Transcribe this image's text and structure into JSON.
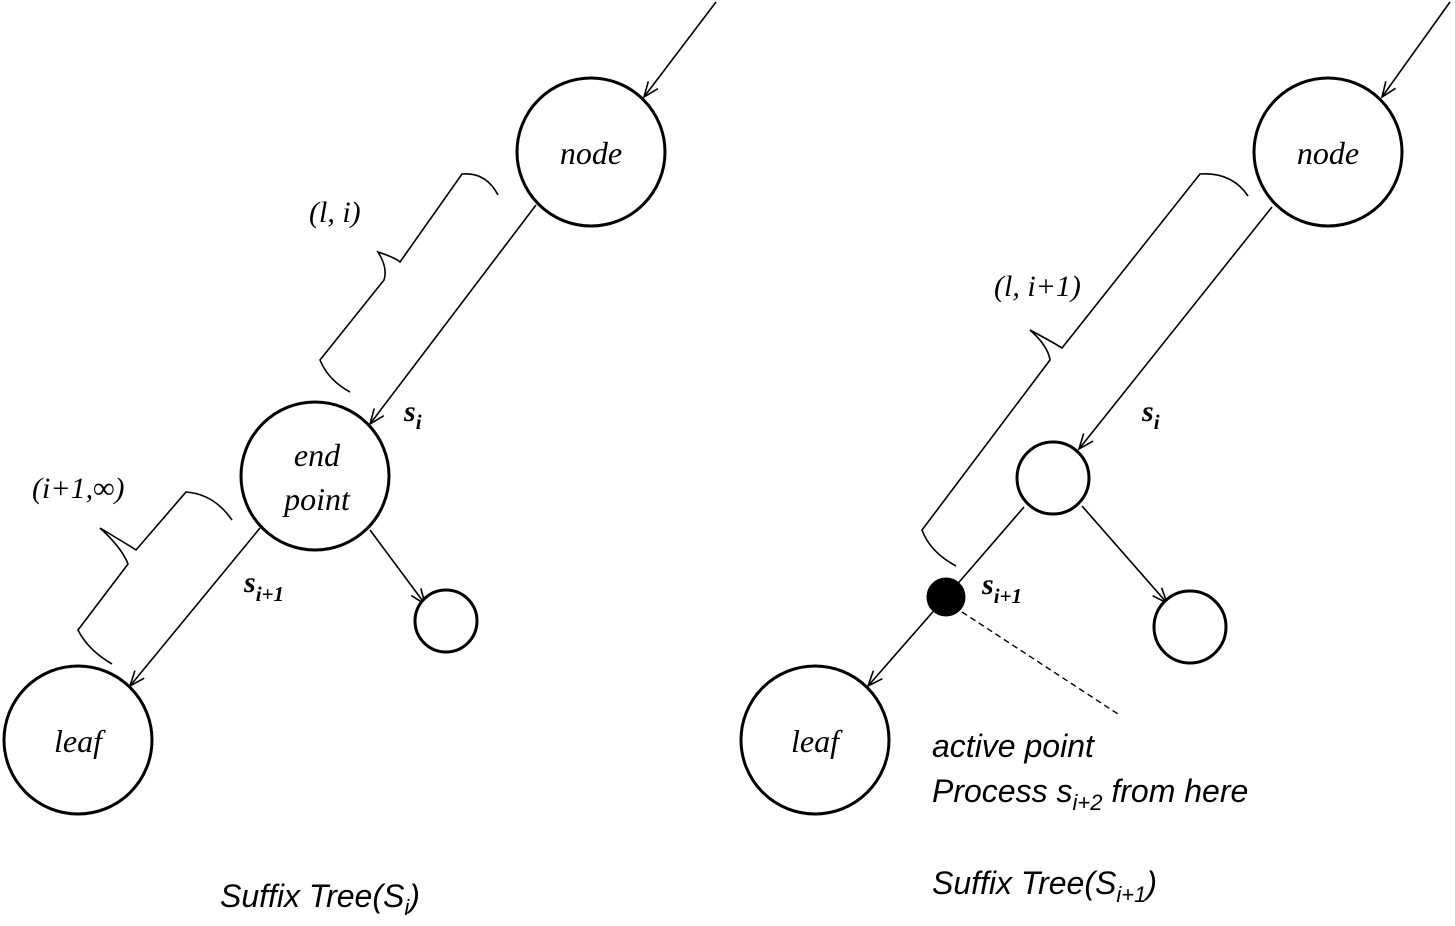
{
  "left": {
    "node_label": "node",
    "endpoint_label_line1": "end",
    "endpoint_label_line2": "point",
    "leaf_label": "leaf",
    "edge_label_upper": "(l, i)",
    "edge_label_lower": "(i+1,∞)",
    "symbol_si": "s",
    "symbol_si_sub": "i",
    "symbol_si1": "s",
    "symbol_si1_sub": "i+1",
    "caption_main": "Suffix Tree(S",
    "caption_sub": "i",
    "caption_close": ")"
  },
  "right": {
    "node_label": "node",
    "leaf_label": "leaf",
    "edge_label": "(l, i+1)",
    "symbol_si": "s",
    "symbol_si_sub": "i",
    "symbol_si1": "s",
    "symbol_si1_sub": "i+1",
    "active_line1": "active point",
    "active_line2_pre": "Process s",
    "active_line2_sub": "i+2",
    "active_line2_post": " from here",
    "caption_main": "Suffix Tree(S",
    "caption_sub": "i+1",
    "caption_close": ")"
  }
}
